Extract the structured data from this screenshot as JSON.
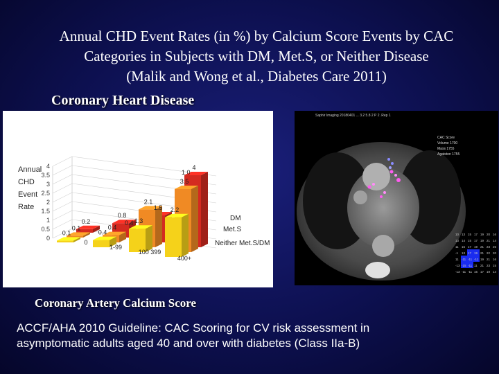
{
  "slide": {
    "title_lines": [
      "Annual CHD Event Rates (in %) by Calcium Score Events by CAC",
      "Categories in Subjects with DM, Met.S, or Neither Disease",
      "(Malik and Wong et al., Diabetes Care 2011)"
    ],
    "chd_label": "Coronary Heart Disease",
    "cac_label": "Coronary Artery Calcium Score",
    "guideline_lines": [
      "ACCF/AHA 2010 Guideline:   CAC Scoring for CV risk assessment in",
      "asymptomatic adults aged 40 and over with diabetes (Class IIa-B)"
    ]
  },
  "chart_data": {
    "type": "bar",
    "ylabel_lines": [
      "Annual",
      "CHD",
      "Event",
      "Rate"
    ],
    "categories": [
      "0",
      "1-99",
      "100 399",
      "400+"
    ],
    "ylim": [
      0,
      4
    ],
    "yticks": [
      "0",
      "0.5",
      "1",
      "1.5",
      "2",
      "2.5",
      "3",
      "3.5",
      "4"
    ],
    "series": [
      {
        "name": "DM",
        "values": [
          0.2,
          0.8,
          1.5,
          4
        ],
        "labels": [
          "0.2",
          "0.8",
          "1.5",
          "4"
        ],
        "color": "#d42a20"
      },
      {
        "name": "Met.S",
        "values": [
          0.1,
          0.4,
          2.1,
          3.5
        ],
        "labels": [
          "0.1",
          "0.4",
          "2.1",
          "3.5"
        ],
        "color": "#f08a24"
      },
      {
        "name": "Neither Met.S/DM",
        "values": [
          0.1,
          0.4,
          1.3,
          2.2
        ],
        "labels": [
          "0.1",
          "0.4",
          "1.3",
          "2.2"
        ],
        "color": "#f5d21a"
      }
    ],
    "extra_labels": [
      "1.0",
      "0.4"
    ],
    "grid": true,
    "legend": "right"
  },
  "ct_image": {
    "header_text": "Saphir Imaging  20180401 ... 3.2  5.8  2  P  2  .Rep  1",
    "info_text": [
      "CAC Score",
      "Volume 1700",
      "Mass 1755",
      "Agatston 1755"
    ],
    "grid_values": [
      "10",
      "13",
      "15",
      "17",
      "19",
      "20",
      "16",
      "13",
      "14",
      "15",
      "17",
      "19",
      "21",
      "14",
      "11",
      "15",
      "17",
      "19",
      "21",
      "23",
      "25",
      "-1",
      "13",
      "17",
      "19",
      "21",
      "22",
      "20",
      "11",
      "-11",
      "-11",
      "-11",
      "19",
      "21",
      "16",
      "-13",
      "-15",
      "-11",
      "11",
      "21",
      "23",
      "15",
      "-13",
      "-11",
      "-11",
      "15",
      "17",
      "19",
      "14"
    ]
  }
}
